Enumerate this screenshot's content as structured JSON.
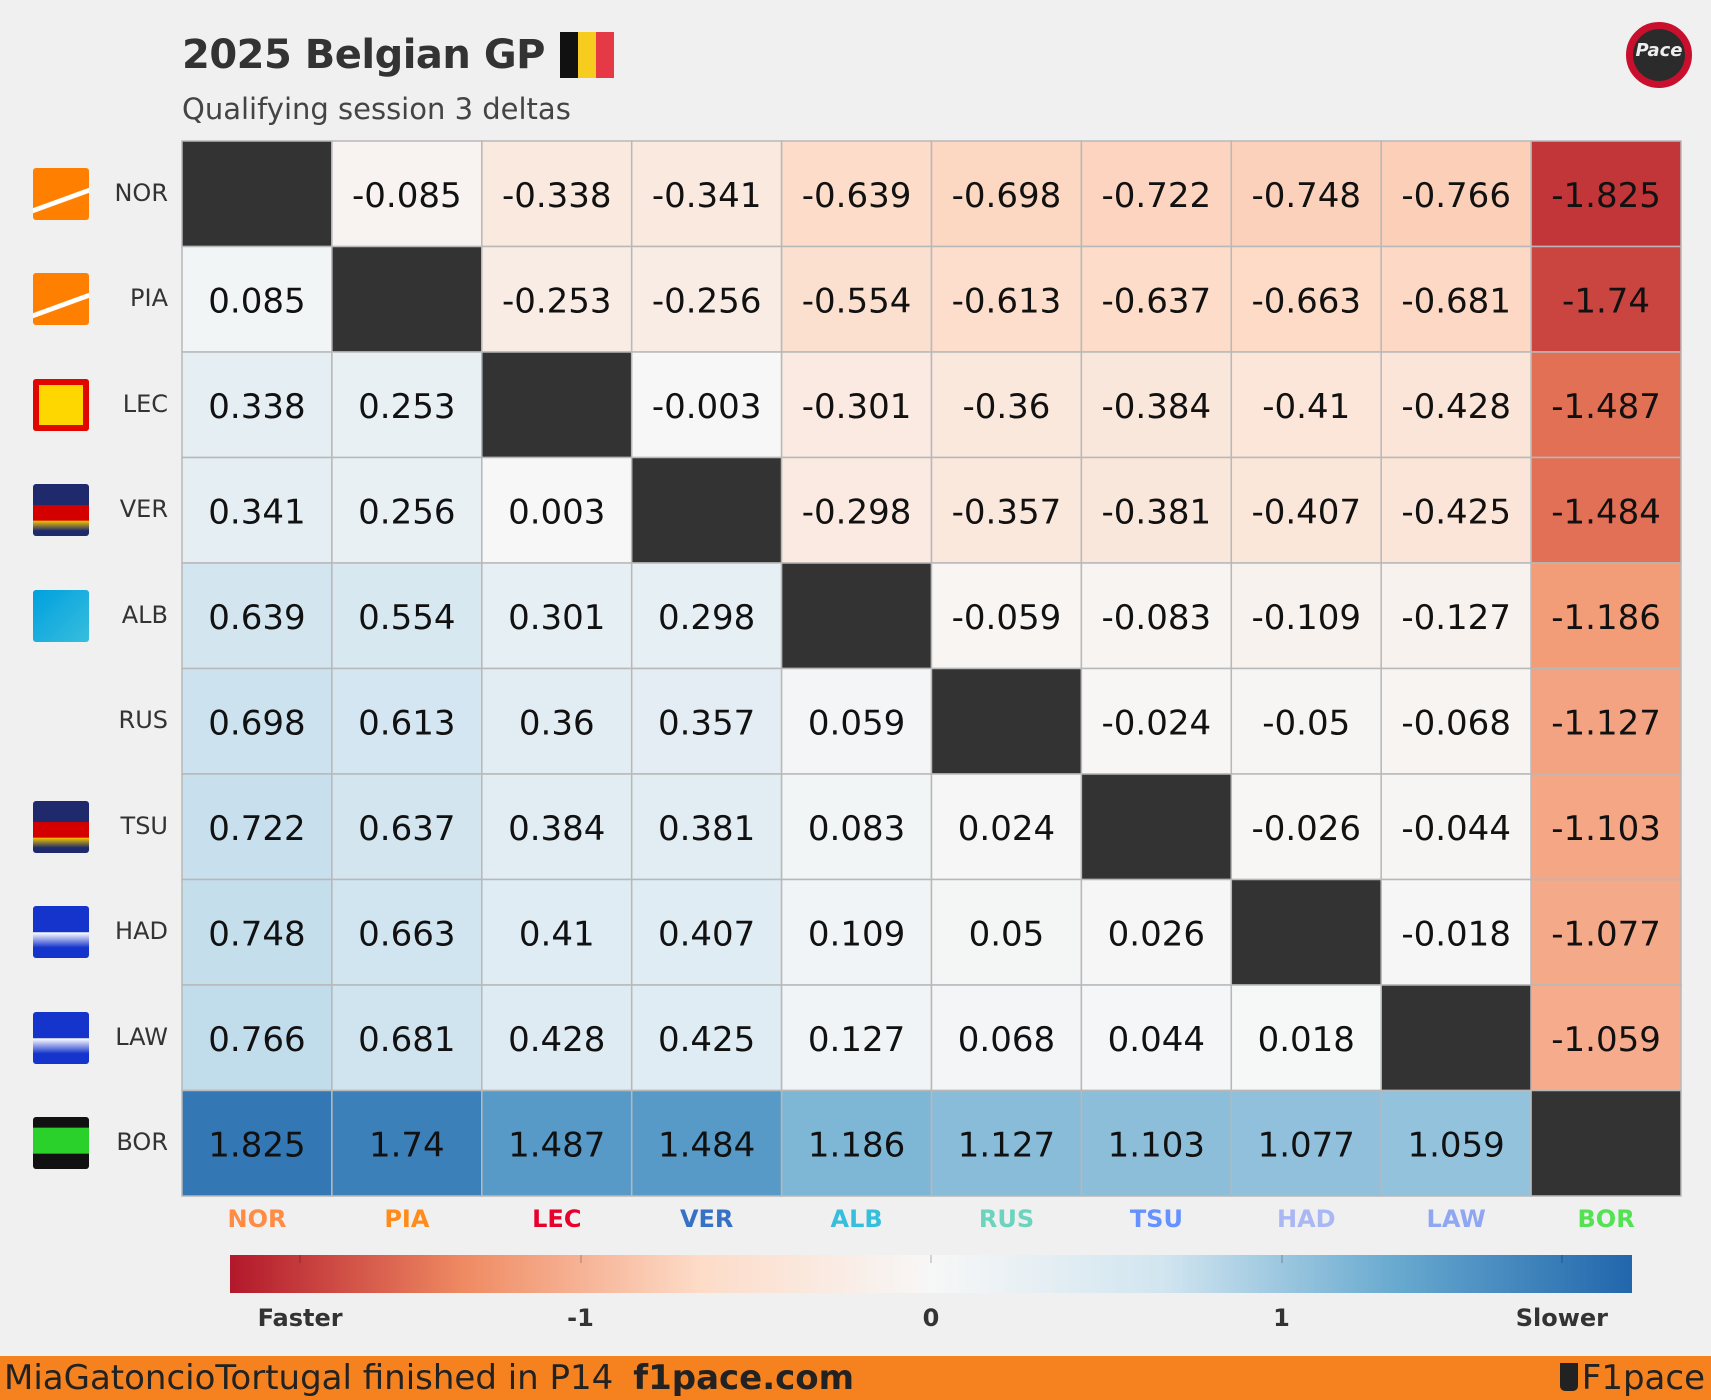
{
  "header": {
    "title": "2025 Belgian GP",
    "subtitle": "Qualifying session 3 deltas",
    "flag_colors": [
      "#111111",
      "#f6cd1f",
      "#e63946"
    ],
    "logo_text": "Pace",
    "logo_icon": "f1pace-logo"
  },
  "chart_data": {
    "type": "heatmap",
    "rows": [
      "NOR",
      "PIA",
      "LEC",
      "VER",
      "ALB",
      "RUS",
      "TSU",
      "HAD",
      "LAW",
      "BOR"
    ],
    "columns": [
      "NOR",
      "PIA",
      "LEC",
      "VER",
      "ALB",
      "RUS",
      "TSU",
      "HAD",
      "LAW",
      "BOR"
    ],
    "column_colors": [
      "#ff8c42",
      "#ff8c1a",
      "#e8002d",
      "#3671c6",
      "#37bedd",
      "#6cd3bf",
      "#6692ff",
      "#a9b8f5",
      "#8fa6f2",
      "#52e252"
    ],
    "row_icons": [
      "mclaren-icon",
      "mclaren-icon",
      "ferrari-icon",
      "redbull-icon",
      "williams-icon",
      "mercedes-icon",
      "redbull-icon",
      "racing-bulls-icon",
      "racing-bulls-icon",
      "sauber-icon"
    ],
    "values": [
      [
        null,
        "-0.085",
        "-0.338",
        "-0.341",
        "-0.639",
        "-0.698",
        "-0.722",
        "-0.748",
        "-0.766",
        "-1.825"
      ],
      [
        "0.085",
        null,
        "-0.253",
        "-0.256",
        "-0.554",
        "-0.613",
        "-0.637",
        "-0.663",
        "-0.681",
        "-1.74"
      ],
      [
        "0.338",
        "0.253",
        null,
        "-0.003",
        "-0.301",
        "-0.36",
        "-0.384",
        "-0.41",
        "-0.428",
        "-1.487"
      ],
      [
        "0.341",
        "0.256",
        "0.003",
        null,
        "-0.298",
        "-0.357",
        "-0.381",
        "-0.407",
        "-0.425",
        "-1.484"
      ],
      [
        "0.639",
        "0.554",
        "0.301",
        "0.298",
        null,
        "-0.059",
        "-0.083",
        "-0.109",
        "-0.127",
        "-1.186"
      ],
      [
        "0.698",
        "0.613",
        "0.36",
        "0.357",
        "0.059",
        null,
        "-0.024",
        "-0.05",
        "-0.068",
        "-1.127"
      ],
      [
        "0.722",
        "0.637",
        "0.384",
        "0.381",
        "0.083",
        "0.024",
        null,
        "-0.026",
        "-0.044",
        "-1.103"
      ],
      [
        "0.748",
        "0.663",
        "0.41",
        "0.407",
        "0.109",
        "0.05",
        "0.026",
        null,
        "-0.018",
        "-1.077"
      ],
      [
        "0.766",
        "0.681",
        "0.428",
        "0.425",
        "0.127",
        "0.068",
        "0.044",
        "0.018",
        null,
        "-1.059"
      ],
      [
        "1.825",
        "1.74",
        "1.487",
        "1.484",
        "1.186",
        "1.127",
        "1.103",
        "1.077",
        "1.059",
        null
      ]
    ],
    "vrange": [
      -2,
      2
    ],
    "diagonal_color": "#333333",
    "colorbar": {
      "labels": [
        "Faster",
        "-1",
        "0",
        "1",
        "Slower"
      ],
      "positions": [
        -1.8,
        -1,
        0,
        1,
        1.8
      ],
      "gradient": [
        "#b2182b",
        "#ef8a62",
        "#fddbc7",
        "#f7f7f7",
        "#d1e5f0",
        "#67a9cf",
        "#2166ac"
      ]
    }
  },
  "footer": {
    "text": "MiaGatoncioTortugal finished in P14",
    "site": "f1pace.com",
    "brand": "F1pace",
    "background": "#f5821f"
  }
}
